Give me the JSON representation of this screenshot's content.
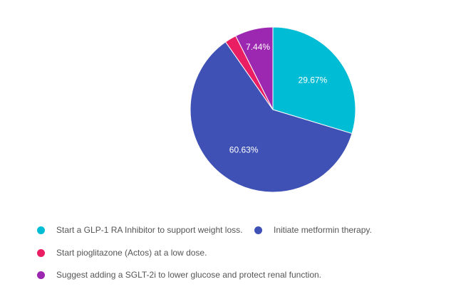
{
  "chart_data": {
    "type": "pie",
    "categories": [
      "Start a GLP-1 RA Inhibitor to support weight loss.",
      "Initiate metformin therapy.",
      "Start pioglitazone (Actos) at a low dose.",
      "Suggest adding a SGLT-2i to lower glucose and protect renal function."
    ],
    "values": [
      29.67,
      60.63,
      2.26,
      7.44
    ],
    "data_labels": [
      "29.67%",
      "60.63%",
      "",
      "7.44%"
    ],
    "colors": [
      "#00bcd4",
      "#3f51b5",
      "#e91e63",
      "#9c27b0"
    ],
    "legend_position": "bottom",
    "start_angle": "12 o'clock, clockwise"
  }
}
